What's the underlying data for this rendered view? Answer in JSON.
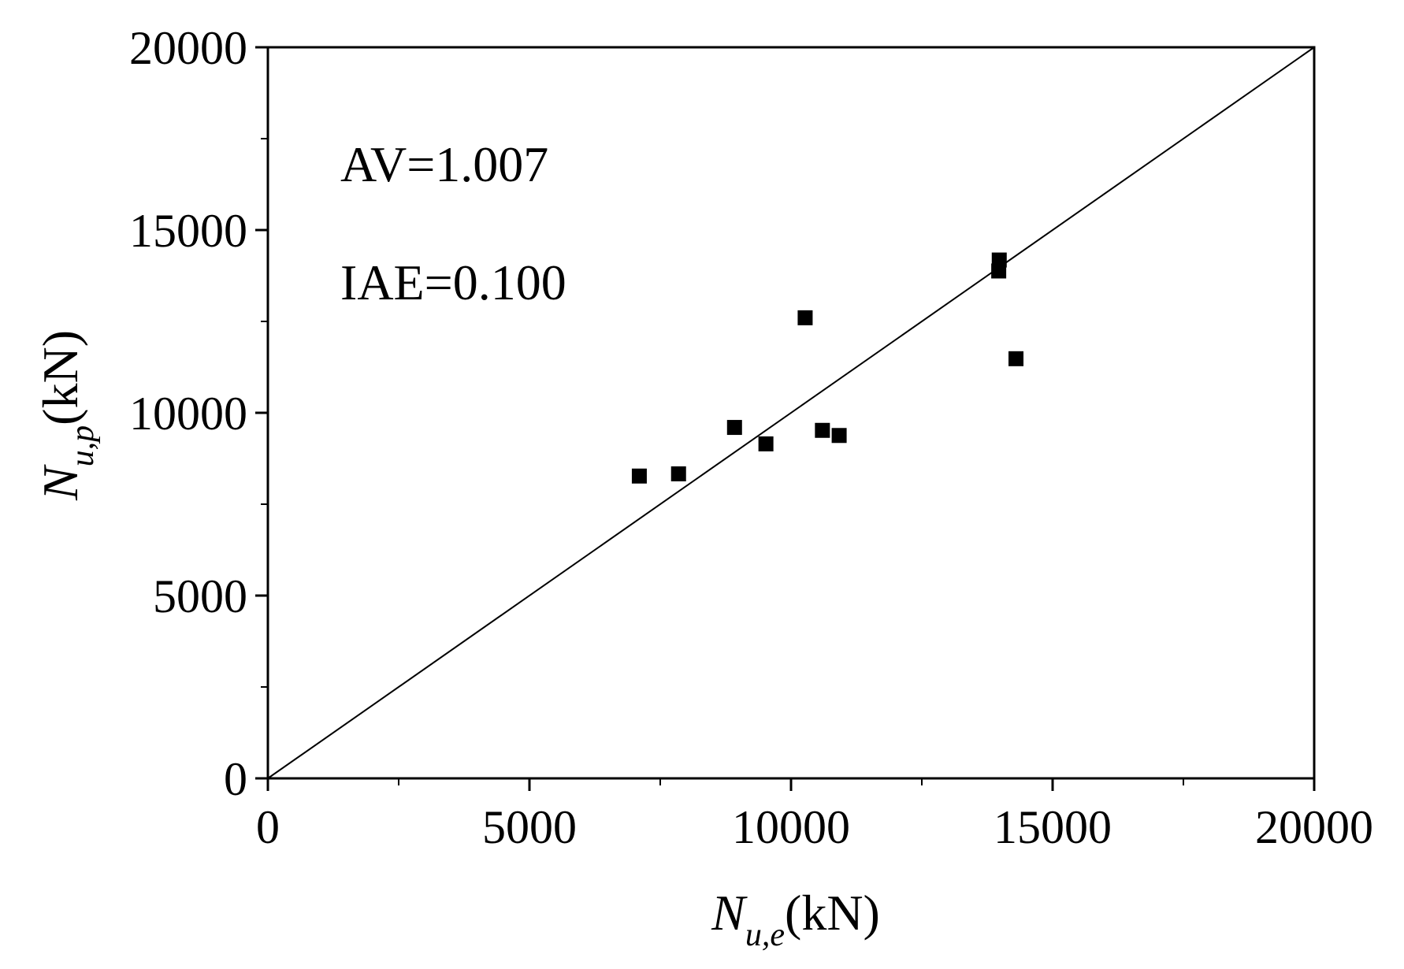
{
  "chart_data": {
    "type": "scatter",
    "title": "",
    "xlabel": {
      "symbol": "N",
      "subscript": "u,e",
      "unit": "(kN)"
    },
    "ylabel": {
      "symbol": "N",
      "subscript": "u,p",
      "unit": "(kN)"
    },
    "xlim": [
      0,
      20000
    ],
    "ylim": [
      0,
      20000
    ],
    "xticks": [
      0,
      5000,
      10000,
      15000,
      20000
    ],
    "yticks": [
      0,
      5000,
      10000,
      15000,
      20000
    ],
    "xtick_labels": [
      "0",
      "5000",
      "10000",
      "15000",
      "20000"
    ],
    "ytick_labels": [
      "0",
      "5000",
      "10000",
      "15000",
      "20000"
    ],
    "minor_ticks": true,
    "grid": false,
    "legend": "none",
    "annotations": [
      "AV=1.007",
      "IAE=0.100"
    ],
    "reference_line": {
      "from": [
        0,
        0
      ],
      "to": [
        20000,
        20000
      ]
    },
    "series": [
      {
        "marker": "square",
        "color": "#000000",
        "points": [
          {
            "x": 7100,
            "y": 8270
          },
          {
            "x": 7850,
            "y": 8330
          },
          {
            "x": 8920,
            "y": 9600
          },
          {
            "x": 9520,
            "y": 9150
          },
          {
            "x": 10270,
            "y": 12600
          },
          {
            "x": 10600,
            "y": 9520
          },
          {
            "x": 10920,
            "y": 9380
          },
          {
            "x": 13980,
            "y": 14180
          },
          {
            "x": 13970,
            "y": 13880
          },
          {
            "x": 14300,
            "y": 11480
          }
        ]
      }
    ]
  }
}
